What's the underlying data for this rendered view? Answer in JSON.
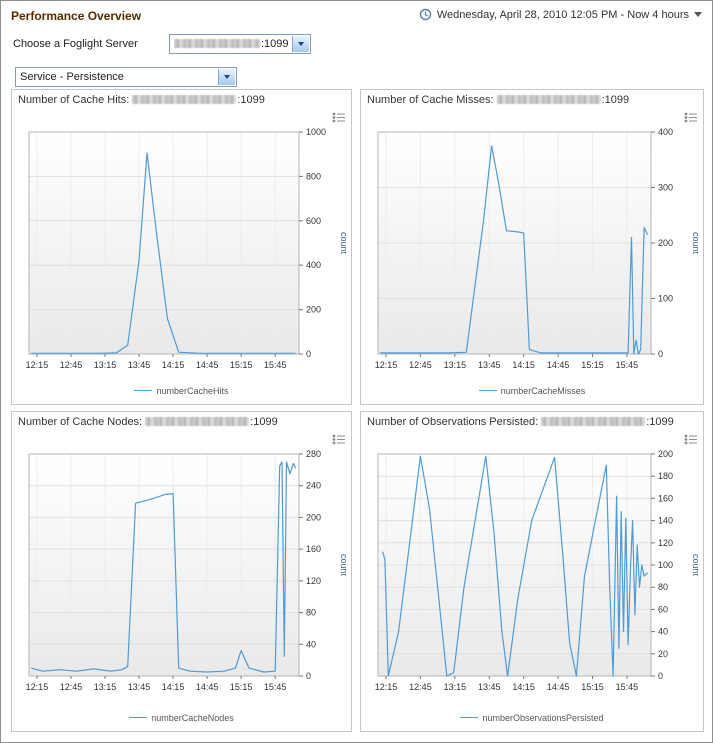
{
  "header": {
    "title": "Performance Overview",
    "time_range": "Wednesday, April 28, 2010 12:05 PM - Now 4 hours"
  },
  "server_selector": {
    "label": "Choose a Foglight Server",
    "value_suffix": ":1099",
    "server_redacted": true
  },
  "service_selector": {
    "value": "Service - Persistence"
  },
  "colors": {
    "series_line": "#4f9bd5",
    "title_text": "#552b00"
  },
  "chart_data": [
    {
      "type": "line",
      "title_prefix": "Number of Cache Hits: ",
      "server_suffix": ":1099",
      "server_redacted": true,
      "legend": "numberCacheHits",
      "ylabel": "count",
      "x_tick_minutes": [
        15,
        45,
        75,
        105,
        135,
        165,
        195,
        225
      ],
      "x_tick_labels": [
        "12:15",
        "12:45",
        "13:15",
        "13:45",
        "14:15",
        "14:45",
        "15:15",
        "15:45"
      ],
      "x_range": [
        8,
        246
      ],
      "y_range": [
        0,
        1000
      ],
      "y_ticks": [
        0,
        200,
        400,
        600,
        800,
        1000
      ],
      "grid": true,
      "legend_position": "bottom",
      "points": [
        [
          10,
          3
        ],
        [
          30,
          3
        ],
        [
          50,
          3
        ],
        [
          70,
          3
        ],
        [
          85,
          5
        ],
        [
          95,
          40
        ],
        [
          105,
          420
        ],
        [
          112,
          905
        ],
        [
          120,
          560
        ],
        [
          130,
          160
        ],
        [
          140,
          8
        ],
        [
          160,
          3
        ],
        [
          180,
          3
        ],
        [
          200,
          3
        ],
        [
          220,
          3
        ],
        [
          243,
          3
        ]
      ]
    },
    {
      "type": "line",
      "title_prefix": "Number of Cache Misses: ",
      "server_suffix": ":1099",
      "server_redacted": true,
      "legend": "numberCacheMisses",
      "ylabel": "count",
      "x_tick_minutes": [
        15,
        45,
        75,
        105,
        135,
        165,
        195,
        225
      ],
      "x_tick_labels": [
        "12:15",
        "12:45",
        "13:15",
        "13:45",
        "14:15",
        "14:45",
        "15:15",
        "15:45"
      ],
      "x_range": [
        8,
        246
      ],
      "y_range": [
        0,
        400
      ],
      "y_ticks": [
        0,
        100,
        200,
        300,
        400
      ],
      "grid": true,
      "legend_position": "bottom",
      "points": [
        [
          10,
          2
        ],
        [
          30,
          2
        ],
        [
          50,
          2
        ],
        [
          70,
          2
        ],
        [
          85,
          3
        ],
        [
          100,
          240
        ],
        [
          107,
          375
        ],
        [
          113,
          310
        ],
        [
          120,
          222
        ],
        [
          130,
          220
        ],
        [
          135,
          218
        ],
        [
          140,
          8
        ],
        [
          150,
          2
        ],
        [
          170,
          2
        ],
        [
          190,
          2
        ],
        [
          210,
          2
        ],
        [
          226,
          2
        ],
        [
          229,
          210
        ],
        [
          231,
          0
        ],
        [
          233,
          25
        ],
        [
          235,
          0
        ],
        [
          237,
          8
        ],
        [
          240,
          228
        ],
        [
          243,
          215
        ]
      ]
    },
    {
      "type": "line",
      "title_prefix": "Number of Cache Nodes: ",
      "server_suffix": ":1099",
      "server_redacted": true,
      "legend": "numberCacheNodes",
      "ylabel": "count",
      "x_tick_minutes": [
        15,
        45,
        75,
        105,
        135,
        165,
        195,
        225
      ],
      "x_tick_labels": [
        "12:15",
        "12:45",
        "13:15",
        "13:45",
        "14:15",
        "14:45",
        "15:15",
        "15:45"
      ],
      "x_range": [
        8,
        246
      ],
      "y_range": [
        0,
        280
      ],
      "y_ticks": [
        0,
        40,
        80,
        120,
        160,
        200,
        240,
        280
      ],
      "grid": true,
      "legend_position": "bottom",
      "points": [
        [
          10,
          10
        ],
        [
          20,
          6
        ],
        [
          35,
          8
        ],
        [
          50,
          6
        ],
        [
          65,
          9
        ],
        [
          80,
          6
        ],
        [
          90,
          8
        ],
        [
          95,
          12
        ],
        [
          102,
          218
        ],
        [
          110,
          221
        ],
        [
          120,
          225
        ],
        [
          128,
          229
        ],
        [
          135,
          230
        ],
        [
          140,
          10
        ],
        [
          150,
          6
        ],
        [
          165,
          5
        ],
        [
          180,
          6
        ],
        [
          190,
          10
        ],
        [
          195,
          32
        ],
        [
          202,
          10
        ],
        [
          215,
          5
        ],
        [
          225,
          6
        ],
        [
          229,
          265
        ],
        [
          231,
          270
        ],
        [
          233,
          25
        ],
        [
          235,
          270
        ],
        [
          238,
          255
        ],
        [
          241,
          268
        ],
        [
          243,
          262
        ]
      ]
    },
    {
      "type": "line",
      "title_prefix": "Number of Observations Persisted: ",
      "server_suffix": ":1099",
      "server_redacted": true,
      "legend": "numberObservationsPersisted",
      "ylabel": "count",
      "x_tick_minutes": [
        15,
        45,
        75,
        105,
        135,
        165,
        195,
        225
      ],
      "x_tick_labels": [
        "12:15",
        "12:45",
        "13:15",
        "13:45",
        "14:15",
        "14:45",
        "15:15",
        "15:45"
      ],
      "x_range": [
        8,
        246
      ],
      "y_range": [
        0,
        200
      ],
      "y_ticks": [
        0,
        20,
        40,
        60,
        80,
        100,
        120,
        140,
        160,
        180,
        200
      ],
      "grid": true,
      "legend_position": "bottom",
      "points": [
        [
          12,
          112
        ],
        [
          14,
          105
        ],
        [
          17,
          0
        ],
        [
          26,
          40
        ],
        [
          45,
          198
        ],
        [
          53,
          150
        ],
        [
          61,
          70
        ],
        [
          68,
          0
        ],
        [
          74,
          3
        ],
        [
          83,
          80
        ],
        [
          102,
          198
        ],
        [
          109,
          130
        ],
        [
          116,
          40
        ],
        [
          121,
          0
        ],
        [
          130,
          70
        ],
        [
          142,
          140
        ],
        [
          162,
          197
        ],
        [
          169,
          110
        ],
        [
          175,
          30
        ],
        [
          181,
          0
        ],
        [
          188,
          90
        ],
        [
          207,
          190
        ],
        [
          210,
          80
        ],
        [
          213,
          0
        ],
        [
          216,
          162
        ],
        [
          218,
          25
        ],
        [
          220,
          148
        ],
        [
          222,
          40
        ],
        [
          224,
          142
        ],
        [
          226,
          28
        ],
        [
          228,
          95
        ],
        [
          230,
          140
        ],
        [
          232,
          55
        ],
        [
          234,
          118
        ],
        [
          236,
          80
        ],
        [
          238,
          100
        ],
        [
          240,
          90
        ],
        [
          243,
          93
        ]
      ]
    }
  ]
}
